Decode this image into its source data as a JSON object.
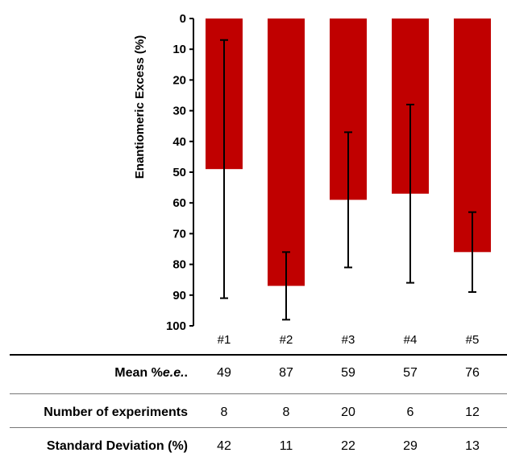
{
  "chart_data": {
    "type": "bar",
    "ylabel": "Enantiomeric Excess (%)",
    "ylim": [
      0,
      100
    ],
    "y_inverted": true,
    "y_ticks": [
      0,
      10,
      20,
      30,
      40,
      50,
      60,
      70,
      80,
      90,
      100
    ],
    "categories": [
      "#1",
      "#2",
      "#3",
      "#4",
      "#5"
    ],
    "values": [
      49,
      87,
      59,
      57,
      76
    ],
    "error_bars": [
      42,
      11,
      22,
      29,
      13
    ],
    "colors": {
      "bar": "#c00000",
      "error": "#000000",
      "axis": "#000000"
    }
  },
  "table": {
    "rows": [
      {
        "label_prefix": "Mean %",
        "label_emph": "e.e.",
        "label_suffix": ".",
        "values": [
          "49",
          "87",
          "59",
          "57",
          "76"
        ]
      },
      {
        "label": "Number of experiments",
        "values": [
          "8",
          "8",
          "20",
          "6",
          "12"
        ]
      },
      {
        "label": "Standard Deviation (%)",
        "values": [
          "42",
          "11",
          "22",
          "29",
          "13"
        ]
      }
    ]
  }
}
